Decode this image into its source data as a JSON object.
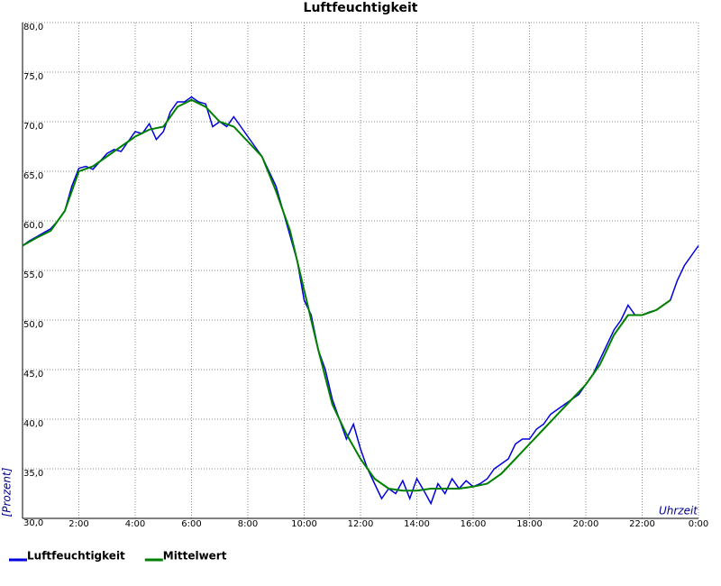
{
  "chart_data": {
    "type": "line",
    "title": "Luftfeuchtigkeit",
    "x_label": "Uhrzeit",
    "y_label": "[Prozent]",
    "xlim": [
      0,
      24
    ],
    "ylim": [
      30,
      80
    ],
    "xticks": [
      {
        "value": 2,
        "label": "2:00"
      },
      {
        "value": 4,
        "label": "4:00"
      },
      {
        "value": 6,
        "label": "6:00"
      },
      {
        "value": 8,
        "label": "8:00"
      },
      {
        "value": 10,
        "label": "10:00"
      },
      {
        "value": 12,
        "label": "12:00"
      },
      {
        "value": 14,
        "label": "14:00"
      },
      {
        "value": 16,
        "label": "16:00"
      },
      {
        "value": 18,
        "label": "18:00"
      },
      {
        "value": 20,
        "label": "20:00"
      },
      {
        "value": 22,
        "label": "22:00"
      },
      {
        "value": 24,
        "label": "0:00"
      }
    ],
    "yticks": [
      {
        "value": 30,
        "label": "30,0"
      },
      {
        "value": 35,
        "label": "35,0"
      },
      {
        "value": 40,
        "label": "40,0"
      },
      {
        "value": 45,
        "label": "45,0"
      },
      {
        "value": 50,
        "label": "50,0"
      },
      {
        "value": 55,
        "label": "55,0"
      },
      {
        "value": 60,
        "label": "60,0"
      },
      {
        "value": 65,
        "label": "65,0"
      },
      {
        "value": 70,
        "label": "70,0"
      },
      {
        "value": 75,
        "label": "75,0"
      },
      {
        "value": 80,
        "label": "80,0"
      }
    ],
    "grid": true,
    "legend": "bottom",
    "series": [
      {
        "name": "Luftfeuchtigkeit",
        "color": "#0000dd",
        "x": [
          0,
          0.25,
          0.5,
          0.75,
          1,
          1.25,
          1.5,
          1.75,
          2,
          2.25,
          2.5,
          2.75,
          3,
          3.25,
          3.5,
          3.75,
          4,
          4.25,
          4.5,
          4.75,
          5,
          5.25,
          5.5,
          5.75,
          6,
          6.25,
          6.5,
          6.75,
          7,
          7.25,
          7.5,
          7.75,
          8,
          8.25,
          8.5,
          8.75,
          9,
          9.25,
          9.5,
          9.75,
          10,
          10.25,
          10.5,
          10.75,
          11,
          11.25,
          11.5,
          11.75,
          12,
          12.25,
          12.5,
          12.75,
          13,
          13.25,
          13.5,
          13.75,
          14,
          14.25,
          14.5,
          14.75,
          15,
          15.25,
          15.5,
          15.75,
          16,
          16.25,
          16.5,
          16.75,
          17,
          17.25,
          17.5,
          17.75,
          18,
          18.25,
          18.5,
          18.75,
          19,
          19.25,
          19.5,
          19.75,
          20,
          20.25,
          20.5,
          20.75,
          21,
          21.25,
          21.5,
          21.75,
          22,
          22.25,
          22.5,
          22.75,
          23,
          23.25,
          23.5,
          23.75,
          24
        ],
        "values": [
          57.5,
          58,
          58.4,
          58.8,
          59.2,
          60,
          61,
          63.5,
          65.3,
          65.5,
          65.2,
          66,
          66.8,
          67.2,
          67,
          68,
          69,
          68.8,
          69.8,
          68.2,
          69,
          71,
          72,
          72,
          72.5,
          72,
          71.8,
          69.5,
          70,
          69.5,
          70.5,
          69.5,
          68.5,
          67.5,
          66.5,
          65,
          63.5,
          61,
          58.5,
          56,
          52,
          50.5,
          47,
          45,
          42,
          40,
          38,
          39.5,
          37,
          35,
          33.5,
          32,
          33,
          32.5,
          33.8,
          32,
          34,
          32.8,
          31.5,
          33.5,
          32.5,
          34,
          33,
          33.8,
          33.2,
          33.5,
          34,
          35,
          35.5,
          36,
          37.5,
          38,
          38,
          39,
          39.5,
          40.5,
          41,
          41.5,
          42,
          42.5,
          43.5,
          44.5,
          46,
          47.5,
          49,
          50,
          51.5,
          50.5,
          50.5,
          50.8,
          51,
          51.5,
          52,
          54,
          55.5,
          56.5,
          57.5
        ]
      },
      {
        "name": "Mittelwert",
        "color": "#008000",
        "x": [
          0,
          0.5,
          1,
          1.5,
          2,
          2.5,
          3,
          3.5,
          4,
          4.5,
          5,
          5.5,
          6,
          6.5,
          7,
          7.5,
          8,
          8.5,
          9,
          9.5,
          10,
          10.5,
          11,
          11.5,
          12,
          12.5,
          13,
          13.5,
          14,
          14.5,
          15,
          15.5,
          16,
          16.5,
          17,
          17.5,
          18,
          18.5,
          19,
          19.5,
          20,
          20.5,
          21,
          21.5,
          22,
          22.5,
          23
        ],
        "values": [
          57.5,
          58.3,
          59,
          61,
          65,
          65.5,
          66.5,
          67.5,
          68.5,
          69.2,
          69.5,
          71.5,
          72.2,
          71.5,
          70,
          69.5,
          68,
          66.5,
          63,
          59,
          53,
          47,
          41.5,
          38.5,
          36,
          34,
          33,
          32.8,
          32.8,
          33,
          33,
          33,
          33.2,
          33.5,
          34.5,
          36,
          37.5,
          39,
          40.5,
          42,
          43.5,
          45.5,
          48.5,
          50.5,
          50.5,
          51,
          52
        ]
      }
    ]
  }
}
